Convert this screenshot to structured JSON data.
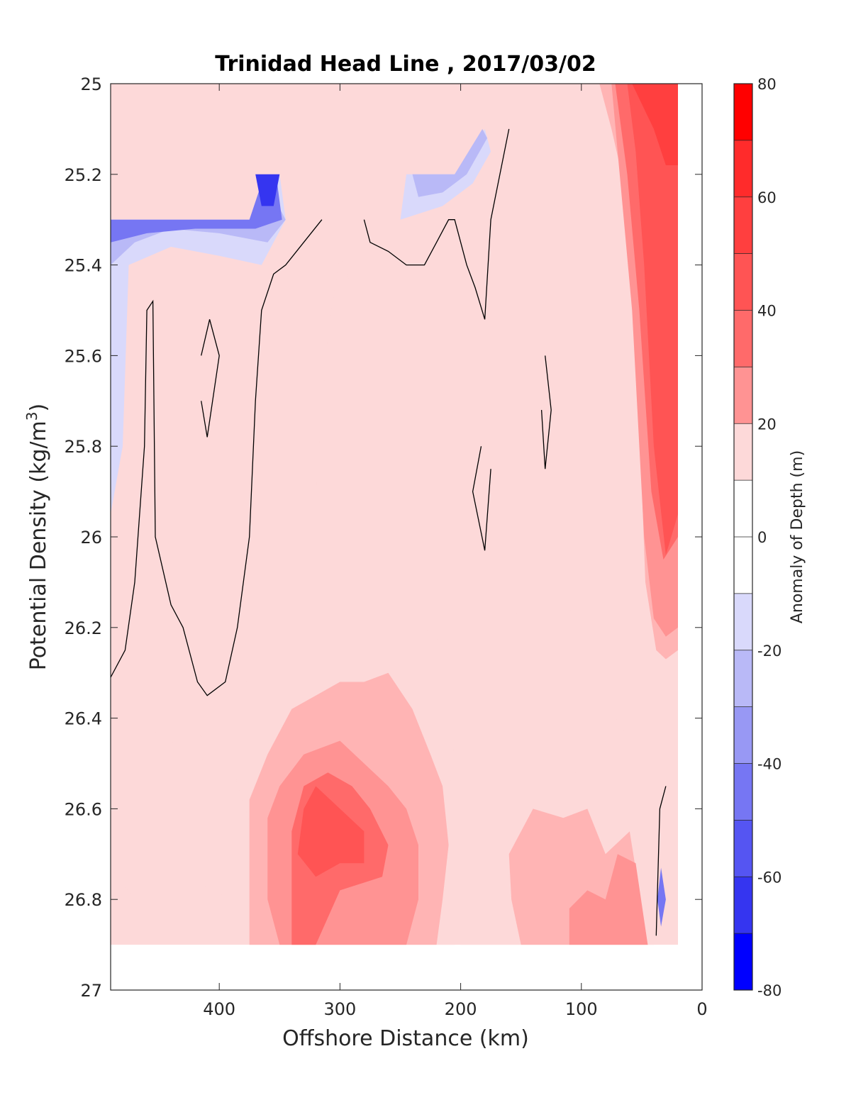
{
  "chart_data": {
    "type": "contour",
    "title": "Trinidad Head Line , 2017/03/02",
    "xlabel": "Offshore Distance (km)",
    "ylabel_main": "Potential Density (kg/m",
    "ylabel_sup": "3",
    "ylabel_close": ")",
    "colorbar_label": "Anomaly of Depth (m)",
    "xlim": [
      490,
      0
    ],
    "ylim": [
      27,
      25
    ],
    "x_reversed": true,
    "y_reversed": true,
    "x_ticks": [
      400,
      300,
      200,
      100,
      0
    ],
    "x_tick_labels": [
      "400",
      "300",
      "200",
      "100",
      "0"
    ],
    "y_ticks": [
      25,
      25.2,
      25.4,
      25.6,
      25.8,
      26,
      26.2,
      26.4,
      26.6,
      26.8,
      27
    ],
    "y_tick_labels": [
      "25",
      "25.2",
      "25.4",
      "25.6",
      "25.8",
      "26",
      "26.2",
      "26.4",
      "26.6",
      "26.8",
      "27"
    ],
    "colorbar_ticks": [
      80,
      60,
      40,
      20,
      0,
      -20,
      -40,
      -60,
      -80
    ],
    "colorbar_tick_labels": [
      "80",
      "60",
      "40",
      "20",
      "0",
      "-20",
      "-40",
      "-60",
      "-80"
    ],
    "colorbar_range": [
      -80,
      80
    ],
    "contour_levels": [
      -80,
      -70,
      -60,
      -50,
      -40,
      -30,
      -20,
      -10,
      10,
      20,
      30,
      40,
      50,
      60,
      70,
      80
    ],
    "level_colors": {
      "70": "#ff2b2b",
      "60": "#ff3f3f",
      "50": "#ff5454",
      "40": "#ff6a6a",
      "30": "#ff9393",
      "20": "#ffb4b4",
      "10": "#fdd9d9",
      "0": "#ffffff",
      "-10": "#d9d9fb",
      "-20": "#b9b9f7",
      "-30": "#9898f4",
      "-40": "#7676f3",
      "-50": "#5555f2",
      "-60": "#3535f0",
      "-70": "#1414f6"
    },
    "filled_regions": [
      {
        "level": 10,
        "points": [
          [
            100,
            25
          ],
          [
            490,
            25
          ],
          [
            490,
            26.9
          ],
          [
            20,
            26.9
          ],
          [
            20,
            25
          ]
        ]
      },
      {
        "level": 20,
        "points": [
          [
            85,
            25
          ],
          [
            20,
            25
          ],
          [
            20,
            26.25
          ],
          [
            30,
            26.27
          ],
          [
            38,
            26.25
          ],
          [
            47,
            26.1
          ],
          [
            58,
            25.3
          ],
          [
            75,
            25.1
          ]
        ]
      },
      {
        "level": 30,
        "points": [
          [
            75,
            25
          ],
          [
            20,
            25
          ],
          [
            20,
            26.2
          ],
          [
            30,
            26.22
          ],
          [
            40,
            26.18
          ],
          [
            48,
            26.0
          ],
          [
            58,
            25.5
          ],
          [
            70,
            25.15
          ]
        ]
      },
      {
        "level": 40,
        "points": [
          [
            72,
            25
          ],
          [
            20,
            25
          ],
          [
            20,
            26.0
          ],
          [
            32,
            26.05
          ],
          [
            42,
            25.9
          ],
          [
            52,
            25.5
          ],
          [
            62,
            25.2
          ]
        ]
      },
      {
        "level": 50,
        "points": [
          [
            62,
            25
          ],
          [
            20,
            25
          ],
          [
            20,
            25.95
          ],
          [
            30,
            26.04
          ],
          [
            40,
            25.8
          ],
          [
            48,
            25.4
          ],
          [
            55,
            25.15
          ]
        ]
      },
      {
        "level": 60,
        "points": [
          [
            58,
            25
          ],
          [
            20,
            25
          ],
          [
            20,
            25.18
          ],
          [
            30,
            25.18
          ],
          [
            40,
            25.1
          ]
        ]
      },
      {
        "level": 10,
        "points": [
          [
            480,
            26.48
          ],
          [
            460,
            26.42
          ],
          [
            440,
            26.45
          ],
          [
            420,
            26.5
          ],
          [
            400,
            26.47
          ],
          [
            390,
            26.5
          ],
          [
            375,
            26.63
          ],
          [
            375,
            26.9
          ],
          [
            205,
            26.9
          ],
          [
            210,
            26.78
          ],
          [
            210,
            26.58
          ],
          [
            205,
            26.45
          ],
          [
            210,
            26.25
          ],
          [
            230,
            26.2
          ],
          [
            250,
            26.2
          ],
          [
            265,
            26.05
          ],
          [
            280,
            25.7
          ],
          [
            290,
            25.45
          ],
          [
            300,
            25.38
          ],
          [
            310,
            25.55
          ],
          [
            320,
            25.9
          ],
          [
            330,
            26.0
          ],
          [
            345,
            26.2
          ],
          [
            360,
            26.27
          ],
          [
            375,
            26.3
          ],
          [
            390,
            26.42
          ],
          [
            410,
            26.45
          ],
          [
            430,
            26.41
          ],
          [
            450,
            26.42
          ],
          [
            470,
            26.5
          ]
        ]
      },
      {
        "level": 10,
        "points": [
          [
            490,
            26.45
          ],
          [
            470,
            26.42
          ],
          [
            455,
            26.45
          ],
          [
            440,
            26.52
          ],
          [
            420,
            26.55
          ],
          [
            410,
            26.5
          ],
          [
            400,
            26.55
          ],
          [
            390,
            26.75
          ],
          [
            400,
            26.8
          ],
          [
            420,
            26.75
          ],
          [
            450,
            26.77
          ],
          [
            470,
            26.8
          ],
          [
            490,
            26.73
          ]
        ]
      },
      {
        "level": 10,
        "points": [
          [
            200,
            26.9
          ],
          [
            195,
            26.6
          ],
          [
            180,
            26.55
          ],
          [
            160,
            26.53
          ],
          [
            120,
            26.55
          ],
          [
            95,
            26.5
          ],
          [
            70,
            26.4
          ],
          [
            55,
            26.48
          ],
          [
            48,
            26.65
          ],
          [
            40,
            26.9
          ]
        ]
      },
      {
        "level": 10,
        "points": [
          [
            150,
            26.1
          ],
          [
            140,
            26.18
          ],
          [
            145,
            26.25
          ],
          [
            155,
            26.2
          ]
        ]
      },
      {
        "level": 10,
        "points": [
          [
            110,
            26.15
          ],
          [
            105,
            26.2
          ],
          [
            110,
            26.25
          ],
          [
            115,
            26.2
          ]
        ]
      },
      {
        "level": 20,
        "points": [
          [
            375,
            26.58
          ],
          [
            360,
            26.48
          ],
          [
            340,
            26.38
          ],
          [
            320,
            26.35
          ],
          [
            300,
            26.32
          ],
          [
            280,
            26.32
          ],
          [
            260,
            26.3
          ],
          [
            240,
            26.38
          ],
          [
            225,
            26.48
          ],
          [
            215,
            26.55
          ],
          [
            210,
            26.68
          ],
          [
            215,
            26.8
          ],
          [
            220,
            26.9
          ],
          [
            375,
            26.9
          ]
        ]
      },
      {
        "level": 30,
        "points": [
          [
            360,
            26.62
          ],
          [
            350,
            26.55
          ],
          [
            330,
            26.48
          ],
          [
            300,
            26.45
          ],
          [
            280,
            26.5
          ],
          [
            260,
            26.55
          ],
          [
            245,
            26.6
          ],
          [
            235,
            26.68
          ],
          [
            235,
            26.8
          ],
          [
            245,
            26.9
          ],
          [
            350,
            26.9
          ],
          [
            360,
            26.8
          ]
        ]
      },
      {
        "level": 40,
        "points": [
          [
            340,
            26.65
          ],
          [
            330,
            26.55
          ],
          [
            310,
            26.52
          ],
          [
            290,
            26.55
          ],
          [
            275,
            26.6
          ],
          [
            260,
            26.68
          ],
          [
            265,
            26.75
          ],
          [
            300,
            26.78
          ],
          [
            320,
            26.9
          ],
          [
            340,
            26.9
          ]
        ]
      },
      {
        "level": 50,
        "points": [
          [
            330,
            26.6
          ],
          [
            320,
            26.55
          ],
          [
            300,
            26.6
          ],
          [
            280,
            26.65
          ],
          [
            280,
            26.72
          ],
          [
            300,
            26.72
          ],
          [
            320,
            26.75
          ],
          [
            335,
            26.7
          ]
        ]
      },
      {
        "level": 20,
        "points": [
          [
            160,
            26.7
          ],
          [
            140,
            26.6
          ],
          [
            115,
            26.62
          ],
          [
            95,
            26.6
          ],
          [
            80,
            26.7
          ],
          [
            60,
            26.65
          ],
          [
            45,
            26.9
          ],
          [
            150,
            26.9
          ],
          [
            158,
            26.8
          ]
        ]
      },
      {
        "level": 30,
        "points": [
          [
            110,
            26.82
          ],
          [
            95,
            26.78
          ],
          [
            80,
            26.8
          ],
          [
            70,
            26.7
          ],
          [
            55,
            26.72
          ],
          [
            45,
            26.9
          ],
          [
            110,
            26.9
          ]
        ]
      },
      {
        "level": -10,
        "points": [
          [
            490,
            25.3
          ],
          [
            385,
            25.3
          ],
          [
            375,
            25.3
          ],
          [
            360,
            25.2
          ],
          [
            350,
            25.2
          ],
          [
            345,
            25.3
          ],
          [
            365,
            25.4
          ],
          [
            400,
            25.38
          ],
          [
            440,
            25.36
          ],
          [
            475,
            25.4
          ],
          [
            480,
            25.8
          ],
          [
            490,
            25.95
          ]
        ]
      },
      {
        "level": -20,
        "points": [
          [
            490,
            25.3
          ],
          [
            385,
            25.3
          ],
          [
            370,
            25.3
          ],
          [
            355,
            25.25
          ],
          [
            345,
            25.3
          ],
          [
            360,
            25.35
          ],
          [
            400,
            25.33
          ],
          [
            440,
            25.32
          ],
          [
            470,
            25.35
          ],
          [
            490,
            25.4
          ]
        ]
      },
      {
        "level": -40,
        "points": [
          [
            490,
            25.3
          ],
          [
            390,
            25.3
          ],
          [
            375,
            25.3
          ],
          [
            365,
            25.22
          ],
          [
            352,
            25.22
          ],
          [
            348,
            25.3
          ],
          [
            370,
            25.32
          ],
          [
            420,
            25.32
          ],
          [
            460,
            25.33
          ],
          [
            490,
            25.35
          ]
        ]
      },
      {
        "level": -60,
        "points": [
          [
            370,
            25.2
          ],
          [
            350,
            25.2
          ],
          [
            355,
            25.27
          ],
          [
            365,
            25.27
          ]
        ]
      },
      {
        "level": -10,
        "points": [
          [
            245,
            25.2
          ],
          [
            205,
            25.2
          ],
          [
            180,
            25.1
          ],
          [
            175,
            25.15
          ],
          [
            190,
            25.22
          ],
          [
            215,
            25.27
          ],
          [
            250,
            25.3
          ]
        ]
      },
      {
        "level": -20,
        "points": [
          [
            240,
            25.2
          ],
          [
            205,
            25.2
          ],
          [
            182,
            25.1
          ],
          [
            178,
            25.12
          ],
          [
            195,
            25.2
          ],
          [
            215,
            25.24
          ],
          [
            235,
            25.25
          ]
        ]
      },
      {
        "level": -40,
        "points": [
          [
            34,
            26.73
          ],
          [
            30,
            26.8
          ],
          [
            34,
            26.86
          ],
          [
            37,
            26.8
          ]
        ]
      }
    ],
    "zero_contours": [
      [
        [
          490,
          26.31
        ],
        [
          478,
          26.25
        ],
        [
          470,
          26.1
        ],
        [
          462,
          25.8
        ],
        [
          460,
          25.5
        ],
        [
          455,
          25.48
        ],
        [
          453,
          26.0
        ],
        [
          440,
          26.15
        ],
        [
          430,
          26.2
        ],
        [
          418,
          26.32
        ],
        [
          410,
          26.35
        ],
        [
          395,
          26.32
        ],
        [
          385,
          26.2
        ],
        [
          375,
          26.0
        ],
        [
          370,
          25.7
        ],
        [
          365,
          25.5
        ],
        [
          355,
          25.42
        ],
        [
          345,
          25.4
        ],
        [
          330,
          25.35
        ],
        [
          315,
          25.3
        ]
      ],
      [
        [
          415,
          25.6
        ],
        [
          408,
          25.52
        ],
        [
          400,
          25.6
        ],
        [
          410,
          25.78
        ],
        [
          415,
          25.7
        ]
      ],
      [
        [
          280,
          25.3
        ],
        [
          275,
          25.35
        ],
        [
          260,
          25.37
        ],
        [
          245,
          25.4
        ],
        [
          230,
          25.4
        ],
        [
          220,
          25.35
        ],
        [
          210,
          25.3
        ],
        [
          205,
          25.3
        ],
        [
          195,
          25.4
        ],
        [
          188,
          25.45
        ],
        [
          180,
          25.52
        ],
        [
          175,
          25.3
        ],
        [
          160,
          25.1
        ]
      ],
      [
        [
          183,
          25.8
        ],
        [
          190,
          25.9
        ],
        [
          180,
          26.03
        ],
        [
          175,
          25.85
        ]
      ],
      [
        [
          130,
          25.6
        ],
        [
          125,
          25.72
        ],
        [
          130,
          25.85
        ],
        [
          133,
          25.72
        ]
      ],
      [
        [
          38,
          26.88
        ],
        [
          35,
          26.6
        ],
        [
          30,
          26.55
        ]
      ]
    ]
  }
}
